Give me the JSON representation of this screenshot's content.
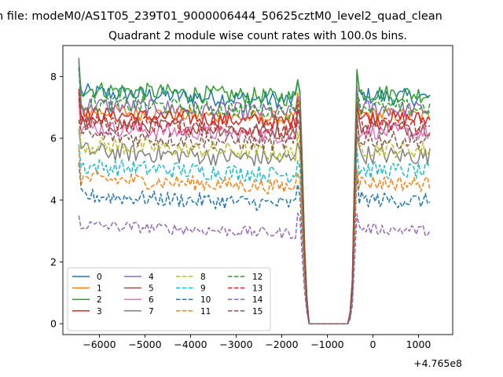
{
  "figure": {
    "suptitle": "n file: modeM0/AS1T05_239T01_9000006444_50625cztM0_level2_quad_clean"
  },
  "chart_data": {
    "type": "line",
    "title": "Quadrant 2 module wise count rates with 100.0s bins.",
    "xlabel": "",
    "ylabel": "",
    "x_offset_label": "+4.765e8",
    "xlim": [
      -6800,
      1750
    ],
    "ylim": [
      -0.35,
      9.0
    ],
    "xticks": [
      -6000,
      -5000,
      -4000,
      -3000,
      -2000,
      -1000,
      0,
      1000
    ],
    "xtick_labels": [
      "−6000",
      "−5000",
      "−4000",
      "−3000",
      "−2000",
      "−1000",
      "0",
      "1000"
    ],
    "yticks": [
      0,
      2,
      4,
      6,
      8
    ],
    "ytick_labels": [
      "0",
      "2",
      "4",
      "6",
      "8"
    ],
    "grid": false,
    "legend_position": "lower-left",
    "legend_columns": 4,
    "gap_x": [
      -1350,
      -550
    ],
    "series": [
      {
        "name": "0",
        "color": "#1f77b4",
        "dash": "solid",
        "level": 7.35,
        "start": 8.3,
        "jitter": 0.28
      },
      {
        "name": "1",
        "color": "#ff7f0e",
        "dash": "solid",
        "level": 6.75,
        "start": 8.5,
        "jitter": 0.25
      },
      {
        "name": "2",
        "color": "#2ca02c",
        "dash": "solid",
        "level": 7.45,
        "start": 8.6,
        "jitter": 0.28
      },
      {
        "name": "3",
        "color": "#d62728",
        "dash": "solid",
        "level": 6.65,
        "start": 7.6,
        "jitter": 0.25
      },
      {
        "name": "4",
        "color": "#9467bd",
        "dash": "solid",
        "level": 6.95,
        "start": 8.5,
        "jitter": 0.28
      },
      {
        "name": "5",
        "color": "#8c564b",
        "dash": "solid",
        "level": 6.35,
        "start": 7.3,
        "jitter": 0.25
      },
      {
        "name": "6",
        "color": "#e377c2",
        "dash": "solid",
        "level": 6.2,
        "start": 7.2,
        "jitter": 0.25
      },
      {
        "name": "7",
        "color": "#7f7f7f",
        "dash": "solid",
        "level": 5.45,
        "start": 6.3,
        "jitter": 0.3
      },
      {
        "name": "8",
        "color": "#bcbd22",
        "dash": "dashed",
        "level": 5.65,
        "start": 6.6,
        "jitter": 0.28
      },
      {
        "name": "9",
        "color": "#17becf",
        "dash": "dashed",
        "level": 4.95,
        "start": 5.8,
        "jitter": 0.28
      },
      {
        "name": "10",
        "color": "#1f77b4",
        "dash": "dashed",
        "level": 4.0,
        "start": 5.2,
        "jitter": 0.25
      },
      {
        "name": "11",
        "color": "#ff7f0e",
        "dash": "dashed",
        "level": 4.55,
        "start": 5.7,
        "jitter": 0.25
      },
      {
        "name": "12",
        "color": "#2ca02c",
        "dash": "dashed",
        "level": 7.0,
        "start": 8.3,
        "jitter": 0.28
      },
      {
        "name": "13",
        "color": "#d62728",
        "dash": "dashed",
        "level": 6.4,
        "start": 7.5,
        "jitter": 0.28
      },
      {
        "name": "14",
        "color": "#9467bd",
        "dash": "dashed",
        "level": 3.05,
        "start": 3.5,
        "jitter": 0.18
      },
      {
        "name": "15",
        "color": "#8c564b",
        "dash": "dashed",
        "level": 5.95,
        "start": 6.6,
        "jitter": 0.28
      }
    ]
  }
}
